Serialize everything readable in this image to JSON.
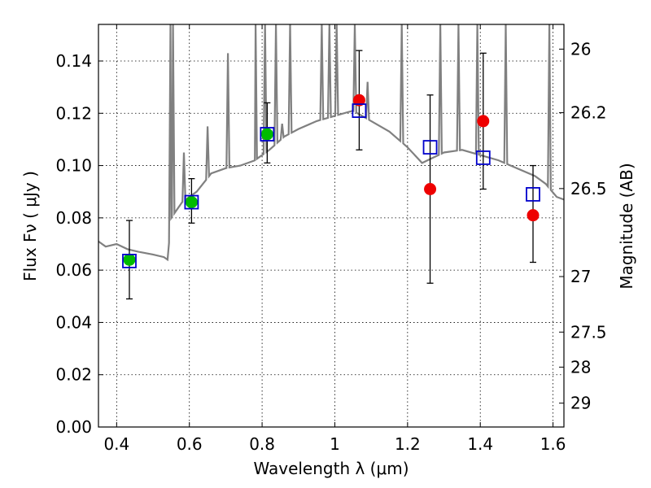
{
  "chart_data": {
    "type": "scatter",
    "xlabel": "Wavelength  λ (μm)",
    "ylabel": "Flux  Fν  ( μJy )",
    "ylabel_right": "Magnitude (AB)",
    "xlim": [
      0.35,
      1.63
    ],
    "ylim": [
      0.0,
      0.154
    ],
    "grid": true,
    "x_ticks": [
      0.4,
      0.6,
      0.8,
      1.0,
      1.2,
      1.4,
      1.6
    ],
    "x_tick_labels": [
      "0.4",
      "0.6",
      "0.8",
      "1",
      "1.2",
      "1.4",
      "1.6"
    ],
    "y_ticks": [
      0.0,
      0.02,
      0.04,
      0.06,
      0.08,
      0.1,
      0.12,
      0.14
    ],
    "y_tick_labels": [
      "0.00",
      "0.02",
      "0.04",
      "0.06",
      "0.08",
      "0.10",
      "0.12",
      "0.14"
    ],
    "right_ticks": [
      {
        "label": "26",
        "mag": 26.0
      },
      {
        "label": "26.2",
        "mag": 26.2
      },
      {
        "label": "26.5",
        "mag": 26.5
      },
      {
        "label": "27",
        "mag": 27.0
      },
      {
        "label": "27.5",
        "mag": 27.5
      },
      {
        "label": "28",
        "mag": 28.0
      },
      {
        "label": "29",
        "mag": 29.0
      }
    ],
    "colors": {
      "spectrum": "#808080",
      "model": "#0000cc",
      "obs_green": "#00bb00",
      "obs_red": "#ee0000",
      "errorbar": "#000000"
    },
    "spectrum": {
      "continuum": [
        [
          0.35,
          0.071
        ],
        [
          0.37,
          0.069
        ],
        [
          0.4,
          0.07
        ],
        [
          0.43,
          0.068
        ],
        [
          0.46,
          0.067
        ],
        [
          0.5,
          0.066
        ],
        [
          0.53,
          0.065
        ],
        [
          0.54,
          0.064
        ],
        [
          0.55,
          0.08
        ],
        [
          0.58,
          0.086
        ],
        [
          0.62,
          0.09
        ],
        [
          0.66,
          0.097
        ],
        [
          0.7,
          0.099
        ],
        [
          0.74,
          0.1
        ],
        [
          0.78,
          0.102
        ],
        [
          0.82,
          0.106
        ],
        [
          0.86,
          0.111
        ],
        [
          0.9,
          0.114
        ],
        [
          0.95,
          0.117
        ],
        [
          1.0,
          0.119
        ],
        [
          1.05,
          0.121
        ],
        [
          1.1,
          0.117
        ],
        [
          1.15,
          0.113
        ],
        [
          1.2,
          0.107
        ],
        [
          1.24,
          0.101
        ],
        [
          1.27,
          0.103
        ],
        [
          1.3,
          0.105
        ],
        [
          1.35,
          0.106
        ],
        [
          1.4,
          0.104
        ],
        [
          1.45,
          0.102
        ],
        [
          1.5,
          0.099
        ],
        [
          1.55,
          0.096
        ],
        [
          1.58,
          0.093
        ],
        [
          1.61,
          0.088
        ],
        [
          1.63,
          0.087
        ]
      ],
      "emission_lines": [
        [
          0.548,
          0.154
        ],
        [
          0.555,
          0.154
        ],
        [
          0.585,
          0.105
        ],
        [
          0.65,
          0.115
        ],
        [
          0.706,
          0.143
        ],
        [
          0.782,
          0.154
        ],
        [
          0.808,
          0.154
        ],
        [
          0.838,
          0.154
        ],
        [
          0.855,
          0.116
        ],
        [
          0.877,
          0.154
        ],
        [
          0.964,
          0.154
        ],
        [
          0.985,
          0.154
        ],
        [
          1.005,
          0.154
        ],
        [
          1.055,
          0.154
        ],
        [
          1.09,
          0.132
        ],
        [
          1.184,
          0.154
        ],
        [
          1.29,
          0.154
        ],
        [
          1.34,
          0.154
        ],
        [
          1.392,
          0.154
        ],
        [
          1.47,
          0.154
        ],
        [
          1.59,
          0.154
        ]
      ]
    },
    "model_points": {
      "x": [
        0.435,
        0.606,
        0.814,
        1.067,
        1.262,
        1.408,
        1.545
      ],
      "y": [
        0.0635,
        0.086,
        0.112,
        0.121,
        0.107,
        0.103,
        0.089
      ]
    },
    "observations": [
      {
        "x": 0.435,
        "y": 0.064,
        "yerr": [
          0.049,
          0.079
        ],
        "color": "green"
      },
      {
        "x": 0.606,
        "y": 0.086,
        "yerr": [
          0.078,
          0.095
        ],
        "color": "green"
      },
      {
        "x": 0.814,
        "y": 0.112,
        "yerr": [
          0.101,
          0.124
        ],
        "color": "green"
      },
      {
        "x": 1.067,
        "y": 0.125,
        "yerr": [
          0.106,
          0.144
        ],
        "color": "red"
      },
      {
        "x": 1.262,
        "y": 0.091,
        "yerr": [
          0.055,
          0.127
        ],
        "color": "red"
      },
      {
        "x": 1.408,
        "y": 0.117,
        "yerr": [
          0.091,
          0.143
        ],
        "color": "red"
      },
      {
        "x": 1.545,
        "y": 0.081,
        "yerr": [
          0.063,
          0.1
        ],
        "color": "red"
      }
    ]
  }
}
